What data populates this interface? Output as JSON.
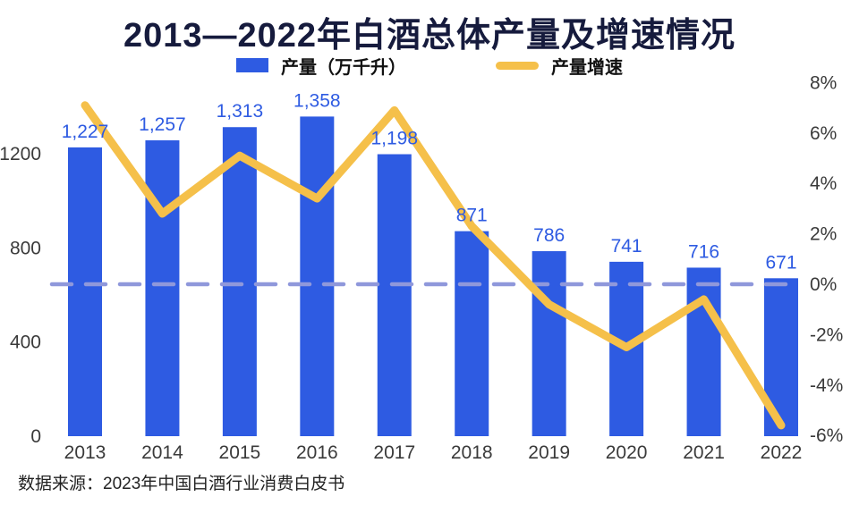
{
  "title": "2013—2022年白酒总体产量及增速情况",
  "legend": {
    "bar_label": "产量（万千升）",
    "line_label": "产量增速"
  },
  "source": "数据来源：2023年中国白酒行业消费白皮书",
  "colors": {
    "bar": "#2e5be2",
    "line": "#f5c04a",
    "zero_line": "#8f98db",
    "bar_label": "#2e5be2",
    "axis_text": "#3a3a3a",
    "title": "#161b3d",
    "legend_text": "#111111",
    "source_text": "#222222",
    "background": "#ffffff"
  },
  "chart_data": {
    "type": "bar+line",
    "title": "2013—2022年白酒总体产量及增速情况",
    "categories": [
      "2013",
      "2014",
      "2015",
      "2016",
      "2017",
      "2018",
      "2019",
      "2020",
      "2021",
      "2022"
    ],
    "series": [
      {
        "name": "产量（万千升）",
        "type": "bar",
        "values": [
          1227,
          1257,
          1313,
          1358,
          1198,
          871,
          786,
          741,
          716,
          671
        ],
        "labels": [
          "1,227",
          "1,257",
          "1,313",
          "1,358",
          "1,198",
          "871",
          "786",
          "741",
          "716",
          "671"
        ]
      },
      {
        "name": "产量增速",
        "type": "line",
        "unit": "%",
        "values": [
          7.1,
          2.8,
          5.1,
          3.4,
          6.9,
          2.3,
          -0.8,
          -2.5,
          -0.6,
          -5.6
        ]
      }
    ],
    "left_axis": {
      "ticks": [
        0,
        400,
        800,
        1200
      ]
    },
    "right_axis": {
      "ticks": [
        8,
        6,
        4,
        2,
        0,
        -2,
        -4,
        -6
      ],
      "unit": "%",
      "min": -6,
      "max": 8
    },
    "legend_position": "top",
    "grid": false,
    "zero_line": "dashed"
  }
}
